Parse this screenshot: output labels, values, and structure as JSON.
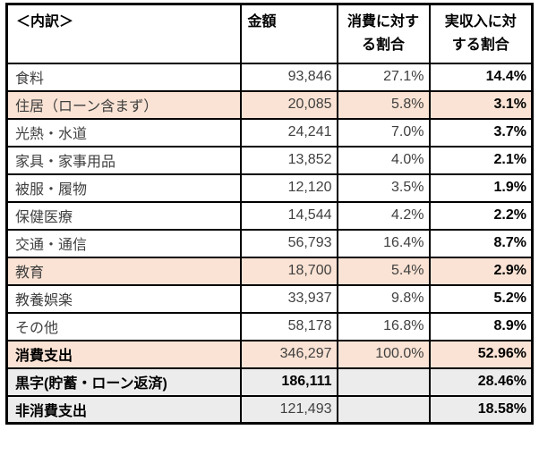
{
  "colors": {
    "border": "#000000",
    "highlight_peach": "#fae3d4",
    "highlight_gray": "#ececec",
    "text_regular": "#3f3f3f",
    "text_bold": "#000000"
  },
  "chart_data": {
    "type": "table",
    "title": "＜内訳＞",
    "columns": [
      "＜内訳＞",
      "金額",
      "消費に対する割合",
      "実収入に対する割合"
    ],
    "header_lines": [
      [
        "＜内訳＞"
      ],
      [
        "金額"
      ],
      [
        "消費に対す",
        "る割合"
      ],
      [
        "実収入に対",
        "する割合"
      ]
    ],
    "rows": [
      {
        "label": "食料",
        "amount": "93,846",
        "pct_of_consumption": "27.1%",
        "pct_of_income": "14.4%",
        "highlight": "none",
        "label_bold": false,
        "amount_bold": false
      },
      {
        "label": "住居（ローン含まず）",
        "amount": "20,085",
        "pct_of_consumption": "5.8%",
        "pct_of_income": "3.1%",
        "highlight": "peach",
        "label_bold": false,
        "amount_bold": false
      },
      {
        "label": "光熱・水道",
        "amount": "24,241",
        "pct_of_consumption": "7.0%",
        "pct_of_income": "3.7%",
        "highlight": "none",
        "label_bold": false,
        "amount_bold": false
      },
      {
        "label": "家具・家事用品",
        "amount": "13,852",
        "pct_of_consumption": "4.0%",
        "pct_of_income": "2.1%",
        "highlight": "none",
        "label_bold": false,
        "amount_bold": false
      },
      {
        "label": "被服・履物",
        "amount": "12,120",
        "pct_of_consumption": "3.5%",
        "pct_of_income": "1.9%",
        "highlight": "none",
        "label_bold": false,
        "amount_bold": false
      },
      {
        "label": "保健医療",
        "amount": "14,544",
        "pct_of_consumption": "4.2%",
        "pct_of_income": "2.2%",
        "highlight": "none",
        "label_bold": false,
        "amount_bold": false
      },
      {
        "label": "交通・通信",
        "amount": "56,793",
        "pct_of_consumption": "16.4%",
        "pct_of_income": "8.7%",
        "highlight": "none",
        "label_bold": false,
        "amount_bold": false
      },
      {
        "label": "教育",
        "amount": "18,700",
        "pct_of_consumption": "5.4%",
        "pct_of_income": "2.9%",
        "highlight": "peach",
        "label_bold": false,
        "amount_bold": false
      },
      {
        "label": "教養娯楽",
        "amount": "33,937",
        "pct_of_consumption": "9.8%",
        "pct_of_income": "5.2%",
        "highlight": "none",
        "label_bold": false,
        "amount_bold": false
      },
      {
        "label": "その他",
        "amount": "58,178",
        "pct_of_consumption": "16.8%",
        "pct_of_income": "8.9%",
        "highlight": "none",
        "label_bold": false,
        "amount_bold": false
      },
      {
        "label": "消費支出",
        "amount": "346,297",
        "pct_of_consumption": "100.0%",
        "pct_of_income": "52.96%",
        "highlight": "peach",
        "label_bold": true,
        "amount_bold": false
      },
      {
        "label": "黒字(貯蓄・ローン返済)",
        "amount": "186,111",
        "pct_of_consumption": "",
        "pct_of_income": "28.46%",
        "highlight": "gray",
        "label_bold": true,
        "amount_bold": true
      },
      {
        "label": "非消費支出",
        "amount": "121,493",
        "pct_of_consumption": "",
        "pct_of_income": "18.58%",
        "highlight": "gray",
        "label_bold": true,
        "amount_bold": false
      }
    ]
  }
}
